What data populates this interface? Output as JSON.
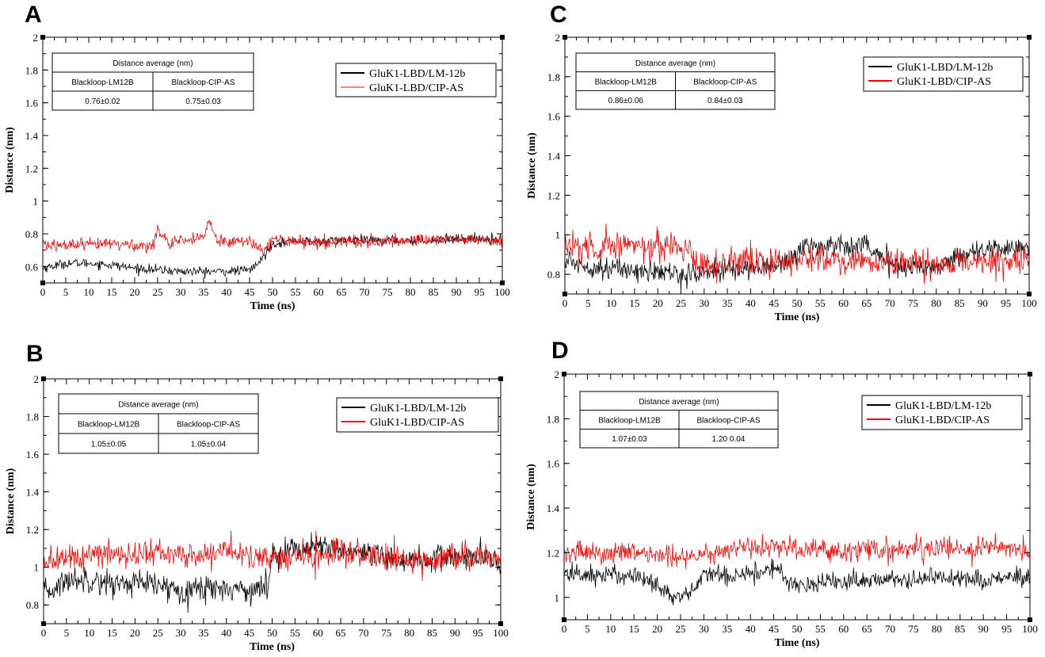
{
  "chart_data": [
    {
      "type": "line",
      "panel": "A",
      "title": "",
      "xlabel": "Time (ns)",
      "ylabel": "Distance (nm)",
      "xlim": [
        0,
        100
      ],
      "ylim": [
        0.5,
        2
      ],
      "xticks": [
        0,
        5,
        10,
        15,
        20,
        25,
        30,
        35,
        40,
        45,
        50,
        55,
        60,
        65,
        70,
        75,
        80,
        85,
        90,
        95,
        100
      ],
      "yticks": [
        0.6,
        0.8,
        1,
        1.2,
        1.4,
        1.6,
        1.8,
        2
      ],
      "yticks_labels": [
        "0.6",
        "0.8",
        "1",
        "1.2",
        "1.4",
        "1.6",
        "1.8",
        "2"
      ],
      "legend": [
        "GluK1-LBD/LM-12b",
        "GluK1-LBD/CIP-AS"
      ],
      "legend_position": "top-right",
      "table": {
        "title": "Distance average (nm)",
        "headers": [
          "Blackloop-LM12B",
          "Blackloop-CIP-AS"
        ],
        "values": [
          "0.76±0.02",
          "0.75±0.03"
        ]
      },
      "series": [
        {
          "name": "GluK1-LBD/LM-12b",
          "color": "#000000",
          "x": [
            0,
            5,
            10,
            15,
            20,
            25,
            30,
            35,
            40,
            45,
            47,
            50,
            55,
            60,
            65,
            70,
            75,
            80,
            85,
            90,
            95,
            100
          ],
          "values": [
            0.59,
            0.62,
            0.62,
            0.61,
            0.59,
            0.58,
            0.57,
            0.57,
            0.57,
            0.58,
            0.62,
            0.74,
            0.76,
            0.75,
            0.76,
            0.76,
            0.76,
            0.76,
            0.76,
            0.77,
            0.77,
            0.77
          ],
          "noise": 0.014
        },
        {
          "name": "GluK1-LBD/CIP-AS",
          "color": "#ff0000",
          "x": [
            0,
            5,
            10,
            15,
            20,
            24,
            25,
            27,
            28,
            30,
            33,
            35,
            36,
            38,
            40,
            45,
            48,
            50,
            55,
            60,
            65,
            70,
            75,
            80,
            85,
            90,
            95,
            100
          ],
          "values": [
            0.73,
            0.73,
            0.73,
            0.74,
            0.73,
            0.72,
            0.84,
            0.76,
            0.72,
            0.76,
            0.76,
            0.78,
            0.88,
            0.76,
            0.76,
            0.75,
            0.71,
            0.76,
            0.76,
            0.74,
            0.76,
            0.75,
            0.75,
            0.76,
            0.77,
            0.77,
            0.76,
            0.76
          ],
          "noise": 0.02
        }
      ]
    },
    {
      "type": "line",
      "panel": "B",
      "title": "",
      "xlabel": "Time (ns)",
      "ylabel": "Distance (nm)",
      "xlim": [
        0,
        100
      ],
      "ylim": [
        0.7,
        2
      ],
      "xticks": [
        0,
        5,
        10,
        15,
        20,
        25,
        30,
        35,
        40,
        45,
        50,
        55,
        60,
        65,
        70,
        75,
        80,
        85,
        90,
        95,
        100
      ],
      "yticks": [
        0.8,
        1,
        1.2,
        1.4,
        1.6,
        1.8,
        2
      ],
      "yticks_labels": [
        "0.8",
        "1",
        "1.2",
        "1.4",
        "1.6",
        "1.8",
        "2"
      ],
      "legend": [
        "GluK1-LBD/LM-12b",
        "GluK1-LBD/CIP-AS"
      ],
      "legend_position": "top-right",
      "table": {
        "title": "Distance average (nm)",
        "headers": [
          "Blackloop-LM12B",
          "Blackloop-CIP-AS"
        ],
        "values": [
          "1.05±0.05",
          "1.05±0.04"
        ]
      },
      "series": [
        {
          "name": "GluK1-LBD/LM-12b",
          "color": "#000000",
          "x": [
            0,
            2,
            5,
            10,
            15,
            20,
            25,
            30,
            35,
            40,
            45,
            49,
            50,
            55,
            60,
            65,
            70,
            75,
            80,
            85,
            90,
            95,
            100
          ],
          "values": [
            0.86,
            0.88,
            0.93,
            0.94,
            0.91,
            0.92,
            0.9,
            0.88,
            0.89,
            0.89,
            0.88,
            0.89,
            1.07,
            1.1,
            1.1,
            1.1,
            1.06,
            1.04,
            1.04,
            1.04,
            1.06,
            1.05,
            1.02
          ],
          "noise": 0.035
        },
        {
          "name": "GluK1-LBD/CIP-AS",
          "color": "#ff0000",
          "x": [
            0,
            5,
            10,
            15,
            20,
            25,
            30,
            35,
            40,
            45,
            50,
            55,
            60,
            65,
            70,
            75,
            80,
            85,
            90,
            95,
            100
          ],
          "values": [
            1.03,
            1.05,
            1.06,
            1.07,
            1.07,
            1.08,
            1.06,
            1.06,
            1.1,
            1.05,
            1.04,
            1.06,
            1.06,
            1.08,
            1.06,
            1.04,
            1.04,
            1.04,
            1.06,
            1.06,
            1.04
          ],
          "noise": 0.035
        }
      ]
    },
    {
      "type": "line",
      "panel": "C",
      "title": "",
      "xlabel": "Time (ns)",
      "ylabel": "Distance (nm)",
      "xlim": [
        0,
        100
      ],
      "ylim": [
        0.7,
        2
      ],
      "xticks": [
        0,
        5,
        10,
        15,
        20,
        25,
        30,
        35,
        40,
        45,
        50,
        55,
        60,
        65,
        70,
        75,
        80,
        85,
        90,
        95,
        100
      ],
      "yticks": [
        0.8,
        1,
        1.2,
        1.4,
        1.6,
        1.8,
        2
      ],
      "yticks_labels": [
        "0.8",
        "1",
        "1.2",
        "1.4",
        "1.6",
        "1.8",
        "2"
      ],
      "legend": [
        "GluK1-LBD/LM-12b",
        "GluK1-LBD/CIP-AS"
      ],
      "legend_position": "top-right",
      "table": {
        "title": "Distance average (nm)",
        "headers": [
          "Blackloop-LM12B",
          "Blackloop-CIP-AS"
        ],
        "values": [
          "0.86±0.06",
          "0.84±0.03"
        ]
      },
      "series": [
        {
          "name": "GluK1-LBD/LM-12b",
          "color": "#000000",
          "x": [
            0,
            5,
            10,
            15,
            20,
            25,
            28,
            30,
            35,
            40,
            45,
            50,
            52,
            55,
            60,
            65,
            67,
            70,
            75,
            80,
            85,
            90,
            95,
            100
          ],
          "values": [
            0.87,
            0.84,
            0.83,
            0.82,
            0.81,
            0.8,
            0.8,
            0.81,
            0.82,
            0.83,
            0.84,
            0.9,
            0.95,
            0.94,
            0.95,
            0.96,
            0.9,
            0.85,
            0.84,
            0.83,
            0.9,
            0.92,
            0.93,
            0.94
          ],
          "noise": 0.028
        },
        {
          "name": "GluK1-LBD/CIP-AS",
          "color": "#ff0000",
          "x": [
            0,
            5,
            10,
            15,
            20,
            25,
            27,
            28,
            30,
            35,
            40,
            45,
            50,
            55,
            60,
            65,
            70,
            75,
            80,
            85,
            90,
            95,
            100
          ],
          "values": [
            0.94,
            0.93,
            0.95,
            0.95,
            0.94,
            0.94,
            0.94,
            0.85,
            0.85,
            0.86,
            0.86,
            0.86,
            0.87,
            0.88,
            0.87,
            0.86,
            0.86,
            0.85,
            0.85,
            0.86,
            0.87,
            0.86,
            0.85
          ],
          "noise": 0.035
        }
      ]
    },
    {
      "type": "line",
      "panel": "D",
      "title": "",
      "xlabel": "Time (ns)",
      "ylabel": "Distance (nm)",
      "xlim": [
        0,
        100
      ],
      "ylim": [
        0.9,
        2
      ],
      "xticks": [
        0,
        5,
        10,
        15,
        20,
        25,
        30,
        35,
        40,
        45,
        50,
        55,
        60,
        65,
        70,
        75,
        80,
        85,
        90,
        95,
        100
      ],
      "yticks": [
        1,
        1.2,
        1.4,
        1.6,
        1.8,
        2
      ],
      "yticks_labels": [
        "1",
        "1.2",
        "1.4",
        "1.6",
        "1.8",
        "2"
      ],
      "legend": [
        "GluK1-LBD/LM-12b",
        "GluK1-LBD/CIP-AS"
      ],
      "legend_position": "top-right",
      "table": {
        "title": "Distance average (nm)",
        "headers": [
          "Blackloop-LM12B",
          "Blackloop-CIP-AS"
        ],
        "values": [
          "1.07±0.03",
          "1.20 0.04"
        ]
      },
      "series": [
        {
          "name": "GluK1-LBD/LM-12b",
          "color": "#000000",
          "x": [
            0,
            5,
            10,
            15,
            20,
            22,
            25,
            28,
            30,
            35,
            40,
            45,
            50,
            51,
            55,
            60,
            65,
            70,
            75,
            80,
            85,
            90,
            95,
            100
          ],
          "values": [
            1.11,
            1.1,
            1.1,
            1.1,
            1.06,
            1.02,
            0.99,
            1.04,
            1.1,
            1.1,
            1.11,
            1.13,
            1.05,
            1.06,
            1.07,
            1.07,
            1.08,
            1.08,
            1.08,
            1.09,
            1.09,
            1.08,
            1.09,
            1.08
          ],
          "noise": 0.022
        },
        {
          "name": "GluK1-LBD/CIP-AS",
          "color": "#ff0000",
          "x": [
            0,
            5,
            10,
            15,
            20,
            25,
            30,
            35,
            40,
            45,
            50,
            55,
            60,
            65,
            70,
            75,
            80,
            85,
            90,
            95,
            100
          ],
          "values": [
            1.19,
            1.2,
            1.2,
            1.19,
            1.19,
            1.18,
            1.2,
            1.21,
            1.22,
            1.23,
            1.21,
            1.21,
            1.21,
            1.22,
            1.21,
            1.22,
            1.22,
            1.21,
            1.22,
            1.23,
            1.2
          ],
          "noise": 0.025
        }
      ]
    }
  ]
}
